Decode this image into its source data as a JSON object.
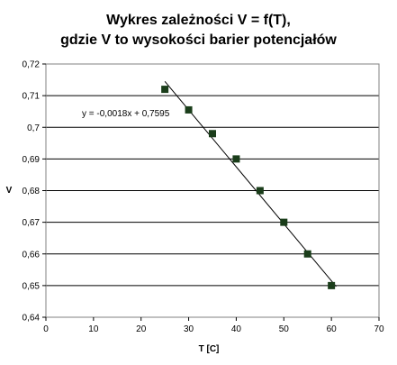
{
  "chart_data": {
    "type": "scatter",
    "title": [
      "Wykres zależności V = f(T),",
      "gdzie V to wysokości barier potencjałów"
    ],
    "xlabel": "T [C]",
    "ylabel": "V",
    "xlim": [
      0,
      70
    ],
    "ylim": [
      0.64,
      0.72
    ],
    "x_ticks": [
      0,
      10,
      20,
      30,
      40,
      50,
      60,
      70
    ],
    "x_tick_labels": [
      "0",
      "10",
      "20",
      "30",
      "40",
      "50",
      "60",
      "70"
    ],
    "y_ticks": [
      0.64,
      0.65,
      0.66,
      0.67,
      0.68,
      0.69,
      0.7,
      0.71,
      0.72
    ],
    "y_tick_labels": [
      "0,64",
      "0,65",
      "0,66",
      "0,67",
      "0,68",
      "0,69",
      "0,7",
      "0,71",
      "0,72"
    ],
    "grid": "horizontal",
    "legend": "none",
    "series": [
      {
        "x": [
          25,
          30,
          35,
          40,
          45,
          50,
          55,
          60
        ],
        "y": [
          0.712,
          0.7055,
          0.698,
          0.69,
          0.68,
          0.67,
          0.66,
          0.65
        ],
        "marker": "square",
        "color": "#1a3d1a"
      }
    ],
    "trendline": {
      "type": "linear",
      "slope": -0.0018,
      "intercept": 0.7595,
      "x_range": [
        25,
        61
      ],
      "equation": "y = -0,0018x + 0,7595",
      "color": "#000000"
    }
  }
}
